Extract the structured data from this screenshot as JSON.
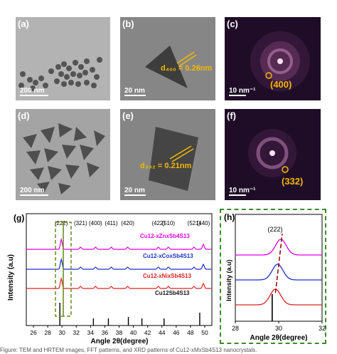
{
  "panels": {
    "a": {
      "label": "(a)",
      "scale": "200 nm"
    },
    "b": {
      "label": "(b)",
      "scale": "20 nm",
      "d_label": "d₄₀₀ = 0.26nm"
    },
    "c": {
      "label": "(c)",
      "scale": "10 nm⁻¹",
      "spot": "(400)"
    },
    "d": {
      "label": "(d)",
      "scale": "200 nm"
    },
    "e": {
      "label": "(e)",
      "scale": "20 nm",
      "d_label": "d₃₃₂ = 0.21nm"
    },
    "f": {
      "label": "(f)",
      "scale": "10 nm⁻¹",
      "spot": "(332)"
    }
  },
  "chart_g": {
    "label": "(g)",
    "xlabel": "Angle 2θ(degree)",
    "ylabel": "Intensity (a.u)",
    "xticks": [
      "26",
      "28",
      "30",
      "32",
      "34",
      "36",
      "38",
      "40",
      "42",
      "44",
      "46",
      "48",
      "50"
    ],
    "peak_labels": [
      "(222)",
      "(321)",
      "(400)",
      "(411)",
      "(420)",
      "(422)",
      "(510)",
      "(521)",
      "(440)"
    ],
    "series": [
      {
        "name": "Cu12-xZnxSb4S13",
        "color": "#e000e0"
      },
      {
        "name": "Cu12-xCoxSb4S13",
        "color": "#1c2fd0"
      },
      {
        "name": "Cu12-xNixSb4S13",
        "color": "#e02020"
      },
      {
        "name": "Cu12Sb4S13",
        "color": "#111111"
      }
    ]
  },
  "chart_h": {
    "label": "(h)",
    "xlabel": "Angle 2θ(degree)",
    "ylabel": "Intensity (a.u)",
    "xticks": [
      "28",
      "30",
      "32"
    ],
    "peak_label": "(222)"
  },
  "chart_data": [
    {
      "type": "line",
      "xlim": [
        25,
        51
      ],
      "reference_peaks_x": [
        29.7,
        34.4,
        36.5,
        39.3,
        41.2,
        44.3,
        49.3
      ],
      "peaks_x": [
        29.9,
        32.6,
        34.7,
        36.9,
        39.2,
        43.5,
        44.9,
        48.5,
        49.8
      ]
    },
    {
      "type": "line",
      "xlim": [
        28,
        32
      ],
      "reference_peak_x": 29.7,
      "peak_centers": [
        30.1,
        29.95,
        29.85
      ]
    }
  ],
  "colors": {
    "accent": "#f5b800",
    "box": "#3a8a2a"
  },
  "caption": "Figure: TEM and HRTEM images, FFT patterns, and XRD patterns of Cu12-xMxSb4S13 nanocrystals."
}
